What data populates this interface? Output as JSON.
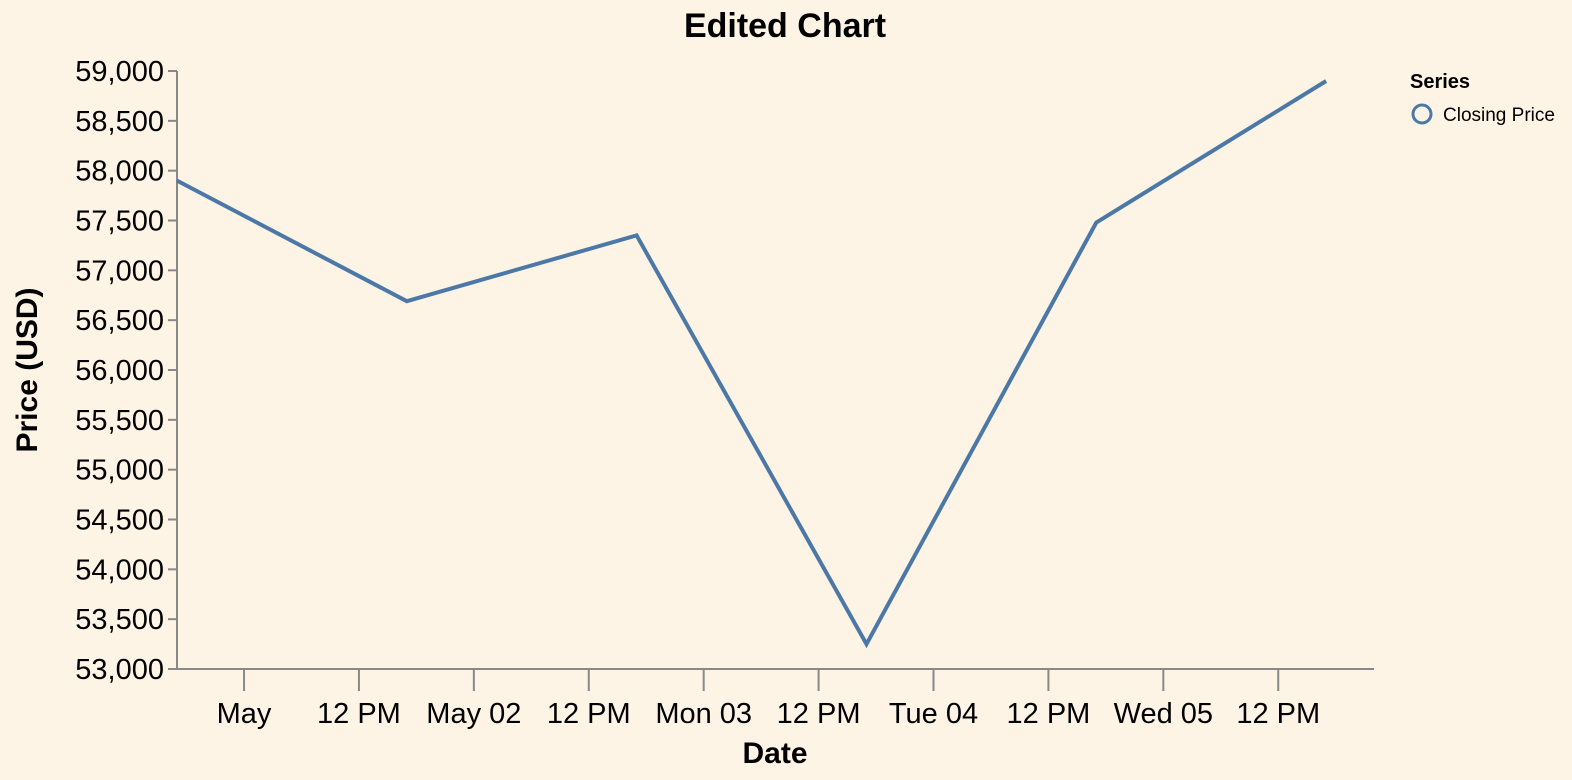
{
  "chart_data": {
    "type": "line",
    "title": "Edited Chart",
    "xlabel": "Date",
    "ylabel": "Price (USD)",
    "x_tick_labels": [
      "May",
      "12 PM",
      "May 02",
      "12 PM",
      "Mon 03",
      "12 PM",
      "Tue 04",
      "12 PM",
      "Wed 05",
      "12 PM"
    ],
    "y_tick_labels": [
      "53,000",
      "53,500",
      "54,000",
      "54,500",
      "55,000",
      "55,500",
      "56,000",
      "56,500",
      "57,000",
      "57,500",
      "58,000",
      "58,500",
      "59,000"
    ],
    "ylim": [
      53000,
      59000
    ],
    "xlim": [
      "2021-04-30 17:00",
      "2021-05-05 22:00"
    ],
    "grid": false,
    "legend": {
      "title": "Series",
      "position": "top-right",
      "entries": [
        "Closing Price"
      ]
    },
    "series": [
      {
        "name": "Closing Price",
        "color": "#4c78a8",
        "x": [
          "2021-04-30 17:00",
          "2021-05-01 17:00",
          "2021-05-02 17:00",
          "2021-05-03 17:00",
          "2021-05-04 17:00",
          "2021-05-05 17:00"
        ],
        "values": [
          57900,
          56690,
          57350,
          53250,
          57480,
          58900
        ]
      }
    ]
  }
}
